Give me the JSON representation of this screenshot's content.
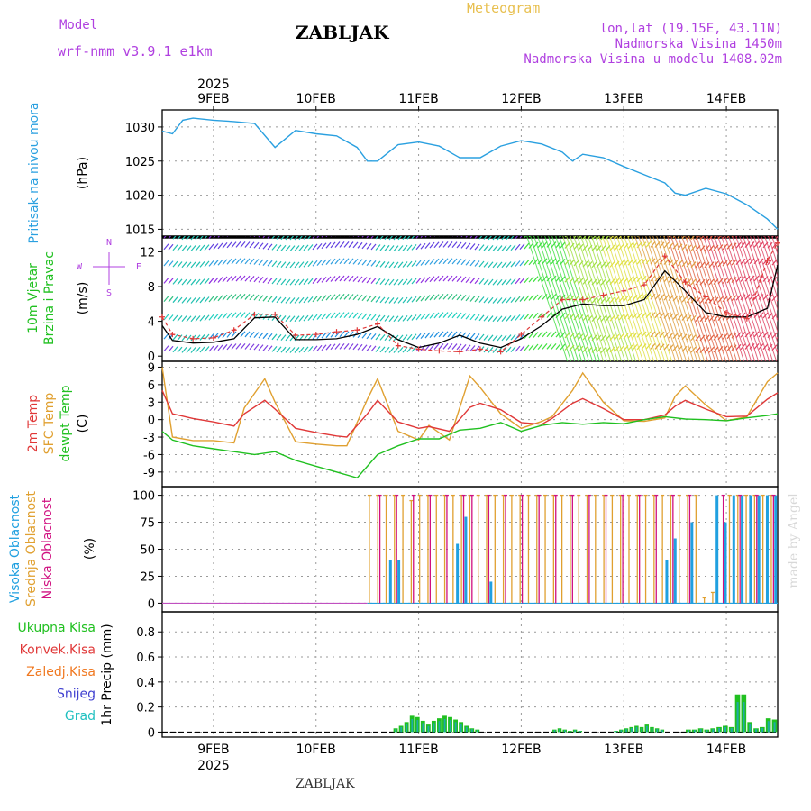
{
  "header": {
    "model_label": "Model",
    "model_name": "wrf-nmm_v3.9.1 e1km",
    "title": "ZABLJAK",
    "subtitle": "Meteogram",
    "coords": "lon,lat (19.15E, 43.11N)",
    "altitude": "Nadmorska Visina 1450m",
    "model_altitude": "Nadmorska Visina u modelu 1408.02m"
  },
  "footer": {
    "location": "ZABLJAK"
  },
  "watermark": "made by Angel",
  "colors": {
    "pressure": "#2aa0e0",
    "temp2m": "#e03838",
    "sfc": "#e0a030",
    "dew": "#20c020",
    "high": "#20a0e0",
    "mid": "#e0a030",
    "low": "#d01080",
    "total": "#20c020",
    "conv": "#e03838",
    "frozen": "#f07820",
    "snow": "#4040d0",
    "hail": "#20c0c0"
  },
  "chart_data": {
    "type": "line",
    "x_year": "2025",
    "x_tick_labels": [
      "9FEB",
      "10FEB",
      "11FEB",
      "12FEB",
      "13FEB",
      "14FEB"
    ],
    "x_range_days": [
      8.5,
      14.5
    ],
    "panels": [
      {
        "id": "pressure",
        "ylabel": [
          "Pritisak na nivou mora",
          "(hPa)"
        ],
        "yticks": [
          1015,
          1020,
          1025,
          1030
        ],
        "ylim": [
          1014,
          1032.5
        ],
        "series": [
          {
            "name": "Pritisak na nivou mora",
            "x": [
              8.5,
              8.6,
              8.7,
              8.8,
              9.0,
              9.2,
              9.4,
              9.6,
              9.8,
              10.0,
              10.2,
              10.4,
              10.5,
              10.6,
              10.8,
              11.0,
              11.2,
              11.4,
              11.6,
              11.8,
              12.0,
              12.2,
              12.4,
              12.5,
              12.6,
              12.8,
              13.0,
              13.2,
              13.4,
              13.5,
              13.6,
              13.8,
              14.0,
              14.2,
              14.4,
              14.5
            ],
            "y": [
              1029.4,
              1029,
              1031,
              1031.3,
              1031,
              1030.8,
              1030.5,
              1027,
              1029.5,
              1029,
              1028.7,
              1027,
              1025,
              1025,
              1027.4,
              1027.8,
              1027.2,
              1025.5,
              1025.5,
              1027.2,
              1028,
              1027.5,
              1026.3,
              1025,
              1026,
              1025.5,
              1024.2,
              1023,
              1021.8,
              1020.3,
              1020,
              1021,
              1020.2,
              1018.6,
              1016.5,
              1015
            ]
          }
        ]
      },
      {
        "id": "wind",
        "ylabel": [
          "10m Vjetar",
          "Brzina i Pravac",
          "(m/s)"
        ],
        "compass": [
          "N",
          "E",
          "S",
          "W"
        ],
        "yticks": [
          0,
          4,
          8,
          12
        ],
        "ylim": [
          -0.6,
          13.8
        ],
        "series": [
          {
            "name": "wind speed",
            "x": [
              8.5,
              8.6,
              8.8,
              9.0,
              9.2,
              9.4,
              9.6,
              9.8,
              10.0,
              10.2,
              10.4,
              10.6,
              10.8,
              11.0,
              11.2,
              11.4,
              11.6,
              11.8,
              12.0,
              12.2,
              12.4,
              12.6,
              12.8,
              13.0,
              13.2,
              13.4,
              13.6,
              13.8,
              14.0,
              14.2,
              14.4,
              14.5
            ],
            "y": [
              3.5,
              1.8,
              1.5,
              1.6,
              2,
              4.4,
              4.5,
              1.9,
              1.9,
              2,
              2.5,
              3.4,
              1.9,
              1,
              1.5,
              2.4,
              1.5,
              1,
              2,
              3.5,
              5.4,
              6,
              5.8,
              5.8,
              6.5,
              9.8,
              7.5,
              5,
              4.5,
              4.5,
              5.5,
              10.5
            ]
          },
          {
            "name": "wind gust",
            "x": [
              8.5,
              8.6,
              8.8,
              9.0,
              9.2,
              9.4,
              9.6,
              9.8,
              10.0,
              10.2,
              10.4,
              10.6,
              10.8,
              11.0,
              11.2,
              11.4,
              11.6,
              11.8,
              12.0,
              12.2,
              12.4,
              12.6,
              12.8,
              13.0,
              13.2,
              13.4,
              13.6,
              13.8,
              14.0,
              14.2,
              14.4,
              14.5
            ],
            "y": [
              4.5,
              2.5,
              2,
              2.1,
              3,
              4.8,
              4.8,
              2.4,
              2.5,
              2.8,
              3,
              3.7,
              1.2,
              0.8,
              0.6,
              0.5,
              0.8,
              0.5,
              2.5,
              4.5,
              6.5,
              6.5,
              7,
              7.5,
              8.2,
              11.5,
              8.5,
              6.8,
              5,
              4.3,
              11,
              13
            ]
          }
        ]
      },
      {
        "id": "temperature",
        "ylabel": [
          "2m Temp",
          "SFC Temp",
          "dewpt Temp",
          "(C)"
        ],
        "yticks": [
          -9,
          -6,
          -3,
          0,
          3,
          6,
          9
        ],
        "ylim": [
          -11.5,
          10
        ],
        "series": [
          {
            "name": "2m Temp",
            "x": [
              8.5,
              8.6,
              8.8,
              9.0,
              9.2,
              9.3,
              9.5,
              9.6,
              9.8,
              10.0,
              10.2,
              10.3,
              10.5,
              10.6,
              10.8,
              11.0,
              11.1,
              11.3,
              11.5,
              11.6,
              11.8,
              12.0,
              12.2,
              12.3,
              12.5,
              12.6,
              12.8,
              13.0,
              13.2,
              13.4,
              13.5,
              13.6,
              13.8,
              14.0,
              14.2,
              14.4,
              14.5
            ],
            "y": [
              5,
              1,
              0.2,
              -0.4,
              -1.1,
              1,
              3.3,
              1.8,
              -1.5,
              -2.2,
              -2.8,
              -3,
              1,
              3.3,
              -0.4,
              -1.5,
              -1.2,
              -2,
              2.1,
              2.8,
              1.7,
              -0.5,
              -0.8,
              0.2,
              2.8,
              3.6,
              1.9,
              0,
              0,
              0.8,
              2.3,
              3.3,
              1.8,
              0.5,
              0.6,
              3.5,
              4.6
            ]
          },
          {
            "name": "SFC Temp",
            "x": [
              8.5,
              8.6,
              8.8,
              9.0,
              9.2,
              9.3,
              9.5,
              9.6,
              9.8,
              10.0,
              10.2,
              10.3,
              10.5,
              10.6,
              10.8,
              11.0,
              11.1,
              11.3,
              11.5,
              11.6,
              11.8,
              12.0,
              12.2,
              12.3,
              12.5,
              12.6,
              12.8,
              13.0,
              13.2,
              13.4,
              13.5,
              13.6,
              13.8,
              14.0,
              14.2,
              14.4,
              14.5
            ],
            "y": [
              9,
              -3,
              -3.6,
              -3.6,
              -4,
              2,
              7,
              3,
              -3.8,
              -4.2,
              -4.5,
              -4.5,
              3.5,
              7,
              -2,
              -3.5,
              -1,
              -3.5,
              7.5,
              5.5,
              1,
              -1.5,
              -0.3,
              0.5,
              5,
              8,
              3,
              -0.2,
              -0.3,
              0.3,
              4,
              5.8,
              2.5,
              -0.2,
              0.5,
              6.5,
              8
            ]
          },
          {
            "name": "dewpt Temp",
            "x": [
              8.5,
              8.6,
              8.8,
              9.0,
              9.2,
              9.4,
              9.6,
              9.8,
              10.0,
              10.2,
              10.4,
              10.5,
              10.6,
              10.8,
              11.0,
              11.2,
              11.4,
              11.6,
              11.8,
              12.0,
              12.2,
              12.4,
              12.6,
              12.8,
              13.0,
              13.2,
              13.4,
              13.6,
              13.8,
              14.0,
              14.2,
              14.4,
              14.5
            ],
            "y": [
              -2,
              -3.5,
              -4.5,
              -5,
              -5.5,
              -6,
              -5.5,
              -7,
              -8,
              -9,
              -10,
              -8,
              -6,
              -4.5,
              -3.3,
              -3.3,
              -1.8,
              -1.5,
              -0.5,
              -2,
              -1,
              -0.5,
              -0.8,
              -0.5,
              -0.7,
              0,
              0.5,
              0.1,
              0,
              -0.2,
              0.3,
              0.7,
              1
            ]
          }
        ]
      },
      {
        "id": "clouds",
        "ylabel": [
          "Visoka Oblacnost",
          "Srednja Oblacnost",
          "Niska Oblacnost",
          "(%)"
        ],
        "yticks": [
          0,
          25,
          50,
          75,
          100
        ],
        "ylim": [
          -8,
          108
        ],
        "series": [
          {
            "name": "Visoka Oblacnost",
            "x_start": 10.5,
            "x_end": 14.5,
            "values": [
              0,
              0,
              40,
              40,
              0,
              0,
              0,
              0,
              0,
              0,
              55,
              80,
              0,
              0,
              20,
              0,
              0,
              0,
              0,
              0,
              0,
              0,
              0,
              0,
              0,
              0,
              0,
              0,
              0,
              0,
              0,
              0,
              0,
              0,
              0,
              40,
              60,
              0,
              75,
              0,
              0,
              100,
              75,
              100,
              100,
              100,
              100,
              100,
              100
            ]
          },
          {
            "name": "Srednja Oblacnost",
            "x_start": 10.5,
            "x_end": 14.5,
            "values": [
              100,
              100,
              100,
              100,
              100,
              95,
              100,
              100,
              100,
              100,
              100,
              100,
              100,
              100,
              100,
              100,
              100,
              100,
              100,
              100,
              100,
              100,
              100,
              100,
              100,
              100,
              100,
              100,
              100,
              100,
              100,
              100,
              100,
              100,
              100,
              100,
              100,
              100,
              100,
              100,
              5,
              10,
              0,
              100,
              100,
              100,
              100,
              100,
              100
            ]
          },
          {
            "name": "Niska Oblacnost",
            "x_start": 10.5,
            "x_end": 14.5,
            "values": [
              0,
              100,
              0,
              100,
              0,
              100,
              0,
              100,
              0,
              100,
              0,
              100,
              100,
              0,
              100,
              0,
              100,
              0,
              100,
              0,
              100,
              0,
              100,
              0,
              100,
              0,
              100,
              0,
              100,
              0,
              100,
              0,
              100,
              0,
              100,
              0,
              100,
              0,
              100,
              0,
              0,
              0,
              100,
              0,
              100,
              0,
              100,
              0,
              100
            ]
          }
        ]
      },
      {
        "id": "precip",
        "ylabel": [
          "Ukupna Kisa",
          "Konvek.Kisa",
          "Zaledj.Kisa",
          "Snijeg",
          "Grad",
          "1hr Precip (mm)"
        ],
        "yticks": [
          0,
          0.2,
          0.4,
          0.6,
          0.8
        ],
        "ylim": [
          -0.04,
          0.96
        ],
        "series": [
          {
            "name": "Ukupna Kisa",
            "x_start": 10.75,
            "x_end": 11.6,
            "values": [
              0.03,
              0.05,
              0.08,
              0.13,
              0.12,
              0.09,
              0.06,
              0.09,
              0.11,
              0.13,
              0.12,
              0.1,
              0.08,
              0.05,
              0.03,
              0.02
            ]
          },
          {
            "name": "Ukupna Kisa",
            "x_start": 12.3,
            "x_end": 12.6,
            "values": [
              0.02,
              0.03,
              0.02,
              0.01,
              0.02,
              0.01
            ]
          },
          {
            "name": "Ukupna Kisa",
            "x_start": 12.9,
            "x_end": 13.4,
            "values": [
              0.01,
              0.02,
              0.03,
              0.04,
              0.05,
              0.04,
              0.06,
              0.04,
              0.03,
              0.02
            ]
          },
          {
            "name": "Ukupna Kisa",
            "x_start": 13.6,
            "x_end": 14.5,
            "values": [
              0.02,
              0.02,
              0.03,
              0.02,
              0.03,
              0.04,
              0.05,
              0.04,
              0.3,
              0.3,
              0.08,
              0.03,
              0.04,
              0.11,
              0.1
            ]
          }
        ]
      }
    ]
  }
}
